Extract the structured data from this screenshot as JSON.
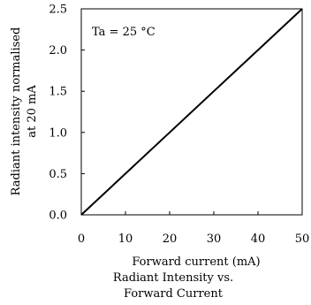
{
  "chart_data": {
    "type": "line",
    "xlabel": "Forward current (mA)",
    "ylabel_line1": "Radiant intensity normalised",
    "ylabel_line2": "at 20 mA",
    "annotation": "Ta = 25 °C",
    "caption_line1": "Radiant Intensity vs.",
    "caption_line2": "Forward Current",
    "xlim": [
      0,
      50
    ],
    "ylim": [
      0,
      2.5
    ],
    "x_ticks": [
      0,
      10,
      20,
      30,
      40,
      50
    ],
    "x_tick_labels": [
      "0",
      "10",
      "20",
      "30",
      "40",
      "50"
    ],
    "y_ticks": [
      0,
      0.5,
      1.0,
      1.5,
      2.0,
      2.5
    ],
    "y_tick_labels": [
      "0.0",
      "0.5",
      "1.0",
      "1.5",
      "2.0",
      "2.5"
    ],
    "grid": false,
    "series": [
      {
        "x": [
          0,
          10,
          20,
          30,
          40,
          50
        ],
        "y": [
          0,
          0.5,
          1.0,
          1.5,
          2.0,
          2.5
        ]
      }
    ]
  }
}
